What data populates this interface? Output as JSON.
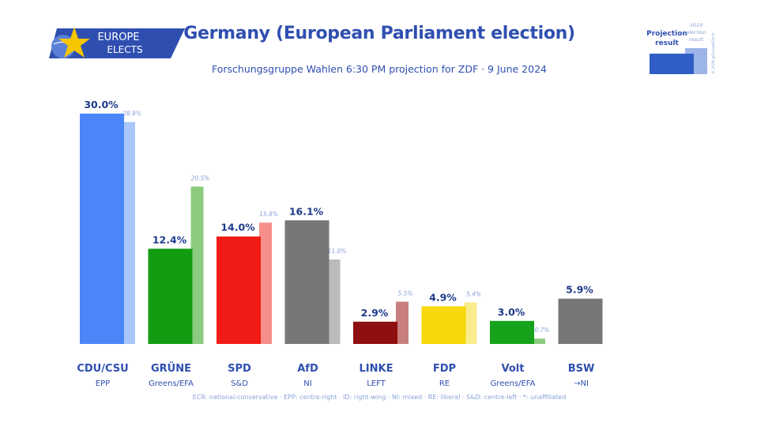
{
  "header": {
    "logo_line1": "EUROPE",
    "logo_line2": "ELECTS",
    "title": "Germany (European Parliament election)",
    "subtitle": "Forschungsgruppe Wahlen 6:30 PM projection for ZDF · 9 June 2024"
  },
  "legend": {
    "projection_line1": "Projection",
    "projection_line2": "result",
    "prev_line1": "2019",
    "prev_line2": "election",
    "prev_line3": "result",
    "copyright": "© 2024 @EuropeElects"
  },
  "footnote": "ECR: national-conservative · EPP: centre-right · ID: right-wing · NI: mixed · RE: liberal · S&D: centre-left · *: unaffiliated",
  "colors": {
    "title": "#2f4fb0",
    "logo_bg": "#2f4fb0",
    "projection_legend": "#2f5fc4",
    "prev_legend": "#9db4e6"
  },
  "chart_data": {
    "type": "bar",
    "ylim": [
      0,
      31
    ],
    "categories": [
      "CDU/CSU",
      "GRÜNE",
      "SPD",
      "AfD",
      "LINKE",
      "FDP",
      "Volt",
      "BSW"
    ],
    "groups": [
      "EPP",
      "Greens/EFA",
      "S&D",
      "NI",
      "LEFT",
      "RE",
      "Greens/EFA",
      "→NI"
    ],
    "series": [
      {
        "values": [
          30.0,
          12.4,
          14.0,
          16.1,
          2.9,
          4.9,
          3.0,
          5.9
        ],
        "labels": [
          "30.0%",
          "12.4%",
          "14.0%",
          "16.1%",
          "2.9%",
          "4.9%",
          "3.0%",
          "5.9%"
        ]
      },
      {
        "values": [
          28.9,
          20.5,
          15.8,
          11.0,
          5.5,
          5.4,
          0.7,
          null
        ],
        "labels": [
          "28.9%",
          "20.5%",
          "15.8%",
          "11.0%",
          "5.5%",
          "5.4%",
          "0.7%",
          ""
        ]
      }
    ],
    "main_colors": [
      "#4a86f7",
      "#129c12",
      "#f21c16",
      "#777777",
      "#8e0f0f",
      "#f7d80a",
      "#16a21a",
      "#777777"
    ],
    "prev_colors": [
      "#a9c6f9",
      "#8ccc80",
      "#f58f8a",
      "#bbbbbb",
      "#c97f7f",
      "#f8ec8c",
      "#8ccc80",
      "#bbbbbb"
    ]
  }
}
